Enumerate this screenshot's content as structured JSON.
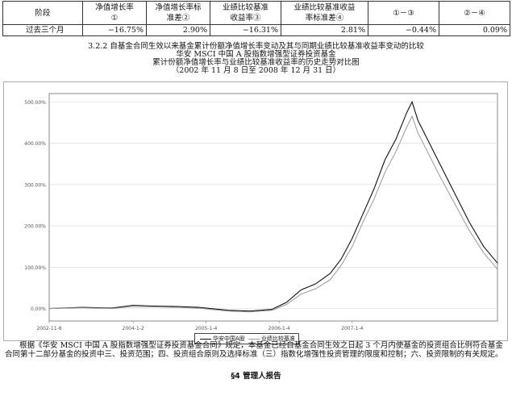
{
  "table": {
    "headers": [
      {
        "line1": "阶段",
        "line2": ""
      },
      {
        "line1": "净值增长率",
        "line2": "①"
      },
      {
        "line1": "净值增长率标",
        "line2": "准差②"
      },
      {
        "line1": "业绩比较基准",
        "line2": "收益率③"
      },
      {
        "line1": "业绩比较基准收益",
        "line2": "率标准差④"
      },
      {
        "line1": "①－③",
        "line2": ""
      },
      {
        "line1": "②－④",
        "line2": ""
      }
    ],
    "rows": [
      [
        "过去三个月",
        "−16.75%",
        "2.90%",
        "−16.31%",
        "2.81%",
        "−0.44%",
        "0.09%"
      ]
    ]
  },
  "headings": {
    "section": "3.2.2 自基金合同生效以来基金累计份额净值增长率变动及其与同期业绩比较基准收益率变动的比较",
    "fund_name": "华安 MSCI 中国 A 股指数增强型证券投资基金",
    "chart_title": "累计份额净值增长率与业绩比较基准收益率的历史走势对比图",
    "period": "（2002 年 11 月 8 日至 2008 年 12 月 31 日）"
  },
  "chart_data": {
    "type": "line",
    "title": "累计份额净值增长率与业绩比较基准收益率的历史走势对比图",
    "x_ticks": [
      "2002-11-8",
      "2004-1-2",
      "2005-1-4",
      "2006-1-4",
      "2007-1-4"
    ],
    "y_ticks": [
      "0.00%",
      "100.00%",
      "200.00%",
      "300.00%",
      "400.00%",
      "500.00%"
    ],
    "ylim": [
      -30,
      520
    ],
    "x": [
      2002.85,
      2003.3,
      2003.7,
      2004.0,
      2004.3,
      2004.6,
      2004.9,
      2005.3,
      2005.6,
      2005.9,
      2006.1,
      2006.3,
      2006.5,
      2006.7,
      2006.85,
      2007.0,
      2007.15,
      2007.3,
      2007.45,
      2007.6,
      2007.75,
      2007.82,
      2007.9,
      2008.0,
      2008.2,
      2008.4,
      2008.6,
      2008.8,
      2008.99
    ],
    "series": [
      {
        "name": "华安中国A股",
        "color": "#111111",
        "values": [
          0,
          3,
          1,
          8,
          6,
          5,
          3,
          -4,
          -6,
          -2,
          15,
          45,
          60,
          85,
          120,
          170,
          230,
          290,
          360,
          410,
          475,
          500,
          455,
          420,
          350,
          280,
          210,
          150,
          110
        ]
      },
      {
        "name": "业绩比较基准",
        "color": "#999999",
        "values": [
          0,
          2,
          0,
          5,
          4,
          3,
          1,
          -6,
          -8,
          -4,
          10,
          35,
          48,
          70,
          105,
          150,
          210,
          265,
          330,
          380,
          440,
          465,
          425,
          390,
          320,
          255,
          190,
          135,
          95
        ]
      }
    ],
    "legend": "bottom"
  },
  "paragraph": "根据《华安 MSCI 中国 A 股指数增强型证券投资基金合同》规定，本基金已经自基金合同生效之日起 3 个月内使基金的投资组合比例符合基金合同第十二部分基金的投资中三、投资范围；四、投资组合原则及选择标准（三）指数化增强性投资管理的限度和控制；六、投资限制的有关规定。",
  "section_title": "§4 管理人报告"
}
